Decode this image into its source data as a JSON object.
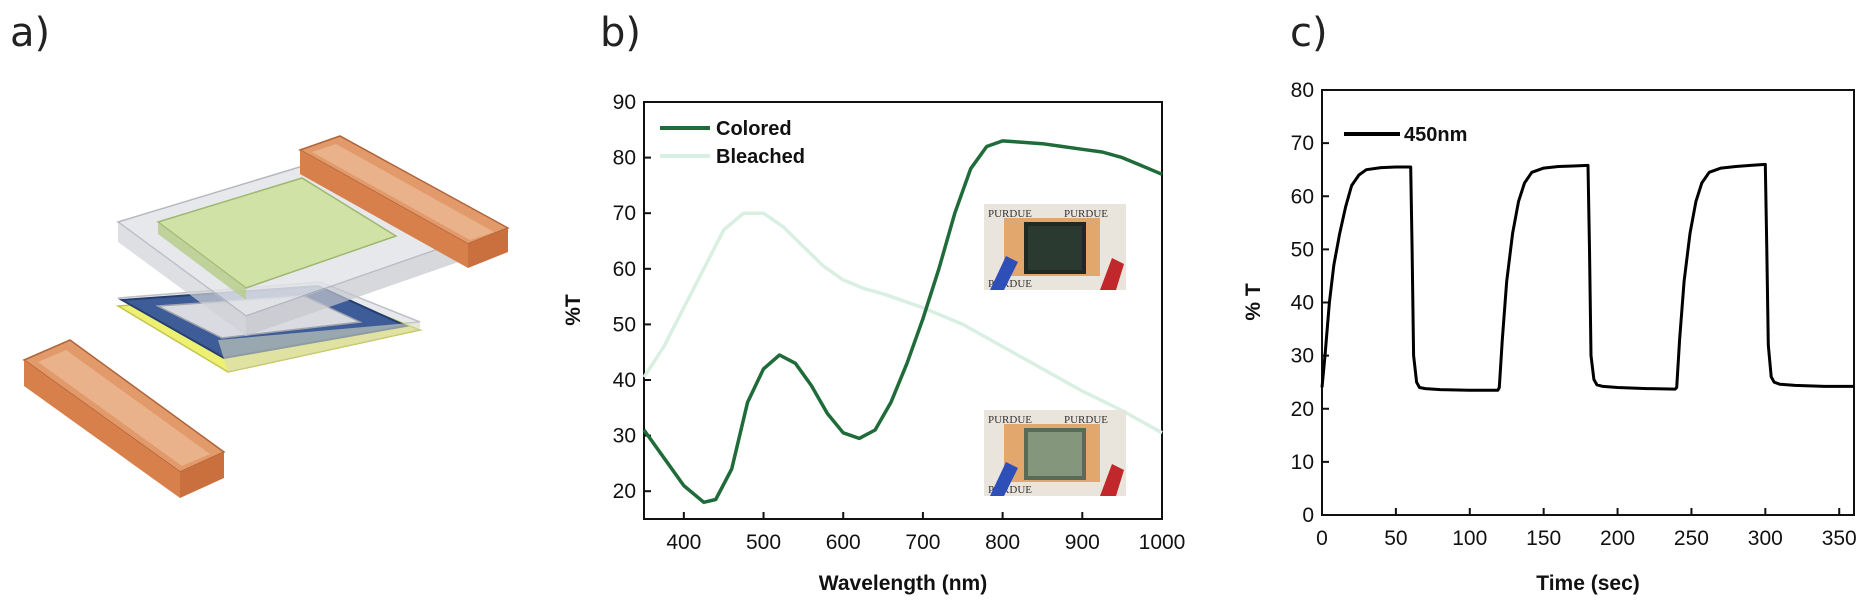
{
  "panels": {
    "a": {
      "label": "a)"
    },
    "b": {
      "label": "b)"
    },
    "c": {
      "label": "c)"
    }
  },
  "colors": {
    "colored": "#1f6b3a",
    "bleached": "#d8efe2",
    "trace_450": "#000000",
    "copper": "#d9834e",
    "glass": "#d9dbe0",
    "film_green": "#cfe3a8",
    "blue_frame": "#3a5a95",
    "yellow_frame": "#e8ea3a"
  },
  "inset_text": {
    "word": "PURDUE"
  },
  "chart_data": [
    {
      "type": "line",
      "panel": "b",
      "xlabel": "Wavelength (nm)",
      "ylabel": "%T",
      "xlim": [
        350,
        1000
      ],
      "ylim": [
        15,
        90
      ],
      "xticks": [
        400,
        500,
        600,
        700,
        800,
        900,
        1000
      ],
      "yticks": [
        20,
        30,
        40,
        50,
        60,
        70,
        80,
        90
      ],
      "legend_position": "top-left",
      "series": [
        {
          "name": "Colored",
          "color": "#1f6b3a",
          "x": [
            350,
            375,
            400,
            425,
            440,
            460,
            480,
            500,
            520,
            540,
            560,
            580,
            600,
            620,
            640,
            660,
            680,
            700,
            720,
            740,
            760,
            780,
            800,
            820,
            850,
            875,
            900,
            925,
            950,
            975,
            1000
          ],
          "y": [
            31,
            26,
            21,
            18,
            18.5,
            24,
            36,
            42,
            44.5,
            43,
            39,
            34,
            30.5,
            29.5,
            31,
            36,
            43,
            51,
            60,
            70,
            78,
            82,
            83,
            82.8,
            82.5,
            82,
            81.5,
            81,
            80,
            78.5,
            77
          ]
        },
        {
          "name": "Bleached",
          "color": "#d8efe2",
          "x": [
            350,
            375,
            400,
            425,
            450,
            475,
            500,
            525,
            550,
            575,
            600,
            625,
            650,
            700,
            750,
            800,
            850,
            900,
            950,
            1000
          ],
          "y": [
            40.5,
            46,
            53,
            60,
            67,
            70,
            70,
            67.5,
            64,
            60.5,
            58,
            56.5,
            55.5,
            53,
            50,
            46,
            42,
            38,
            34.5,
            30.5
          ]
        }
      ]
    },
    {
      "type": "line",
      "panel": "c",
      "xlabel": "Time (sec)",
      "ylabel": "% T",
      "xlim": [
        0,
        360
      ],
      "ylim": [
        0,
        80
      ],
      "xticks": [
        0,
        50,
        100,
        150,
        200,
        250,
        300,
        350
      ],
      "yticks": [
        0,
        10,
        20,
        30,
        40,
        50,
        60,
        70,
        80
      ],
      "legend_position": "top-left",
      "series": [
        {
          "name": "450nm",
          "color": "#000000",
          "x": [
            0,
            2,
            5,
            8,
            12,
            16,
            20,
            25,
            30,
            40,
            50,
            60,
            61,
            62,
            64,
            66,
            70,
            80,
            100,
            119,
            120,
            122,
            125,
            129,
            133,
            137,
            142,
            150,
            160,
            170,
            180,
            181,
            182,
            184,
            186,
            190,
            200,
            220,
            239,
            240,
            242,
            245,
            249,
            253,
            257,
            262,
            270,
            280,
            290,
            300,
            301,
            302,
            304,
            306,
            310,
            320,
            340,
            360
          ],
          "y": [
            24,
            30,
            40,
            47,
            53,
            58,
            62,
            64,
            65,
            65.4,
            65.5,
            65.5,
            50,
            30,
            25,
            24,
            23.8,
            23.6,
            23.5,
            23.5,
            24,
            33,
            44,
            53,
            59,
            62.5,
            64.5,
            65.3,
            65.6,
            65.7,
            65.8,
            50,
            30,
            25.5,
            24.5,
            24.2,
            24,
            23.8,
            23.7,
            24,
            33,
            44,
            53,
            59,
            62.5,
            64.5,
            65.3,
            65.6,
            65.8,
            66,
            50,
            32,
            26,
            25,
            24.6,
            24.4,
            24.2,
            24.2
          ]
        }
      ]
    }
  ]
}
